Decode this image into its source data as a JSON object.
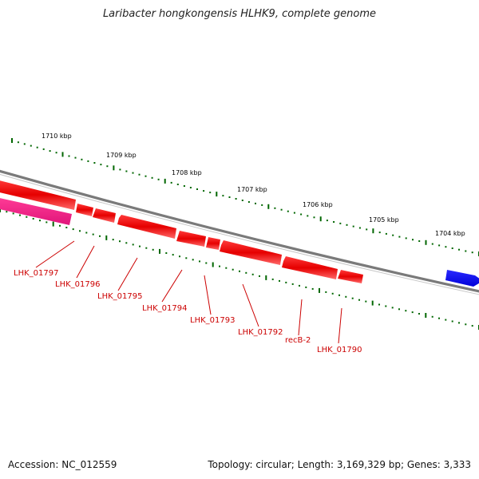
{
  "title": "Laribacter hongkongensis HLHK9, complete genome",
  "footer": {
    "accession": "Accession: NC_012559",
    "summary": "Topology: circular; Length: 3,169,329 bp; Genes: 3,333"
  },
  "colors": {
    "backbone": "#7a7a7a",
    "forward_gene": "#0000ee",
    "reverse_gene": "#ee0000",
    "other_gene": "#e8157a",
    "tick": "#006600",
    "label": "#cc0000"
  },
  "scale_labels": [
    "1710 kbp",
    "1709 kbp",
    "1708 kbp",
    "1707 kbp",
    "1706 kbp",
    "1705 kbp",
    "1704 kbp"
  ],
  "genes": [
    {
      "label": "LHK_01797",
      "strand": "-"
    },
    {
      "label": "LHK_01796",
      "strand": "-"
    },
    {
      "label": "LHK_01795",
      "strand": "-"
    },
    {
      "label": "LHK_01794",
      "strand": "-"
    },
    {
      "label": "LHK_01793",
      "strand": "-"
    },
    {
      "label": "LHK_01792",
      "strand": "-"
    },
    {
      "label": "recB-2",
      "strand": "-"
    },
    {
      "label": "LHK_01790",
      "strand": "-"
    }
  ]
}
